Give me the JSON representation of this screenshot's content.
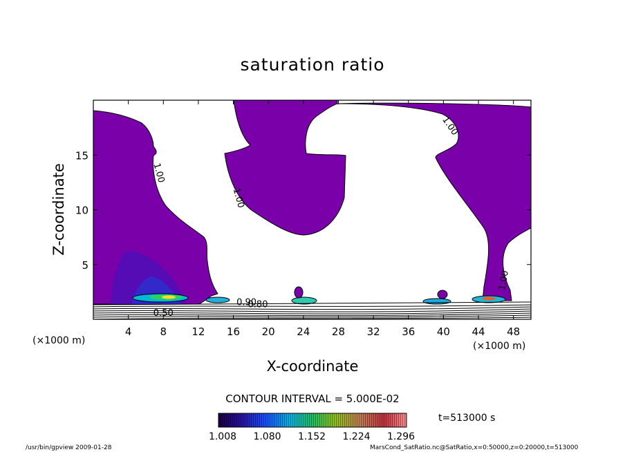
{
  "chart_data": {
    "type": "contour",
    "title": "saturation ratio",
    "xlabel": "X-coordinate",
    "ylabel": "Z-coordinate",
    "x_unit_label": "(×1000 m)",
    "z_unit_label": "(×1000 m)",
    "xlim": [
      0,
      50
    ],
    "ylim": [
      0,
      20
    ],
    "x_ticks": [
      4,
      8,
      12,
      16,
      20,
      24,
      28,
      32,
      36,
      40,
      44,
      48
    ],
    "y_ticks": [
      5,
      10,
      15
    ],
    "contour_interval_text": "CONTOUR INTERVAL = 5.000E-02",
    "time_text": "t=513000 s",
    "colorbar_ticks": [
      "1.008",
      "1.080",
      "1.152",
      "1.224",
      "1.296"
    ],
    "contour_labels": [
      {
        "text": "1.00",
        "x": 7.2,
        "z": 13.3
      },
      {
        "text": "1.00",
        "x": 16.3,
        "z": 11.0
      },
      {
        "text": "1.00",
        "x": 40.5,
        "z": 17.5
      },
      {
        "text": "1.00",
        "x": 47.2,
        "z": 3.5
      },
      {
        "text": "0.50",
        "x": 8.0,
        "z": 0.3
      },
      {
        "text": "0.90",
        "x": 17.5,
        "z": 1.3
      },
      {
        "text": "0.80",
        "x": 18.8,
        "z": 1.1
      }
    ],
    "saturated_color": "#7a00aa"
  },
  "footer": {
    "left": "/usr/bin/gpview  2009-01-28",
    "right": "MarsCond_SatRatio.nc@SatRatio,x=0:50000,z=0:20000,t=513000"
  }
}
